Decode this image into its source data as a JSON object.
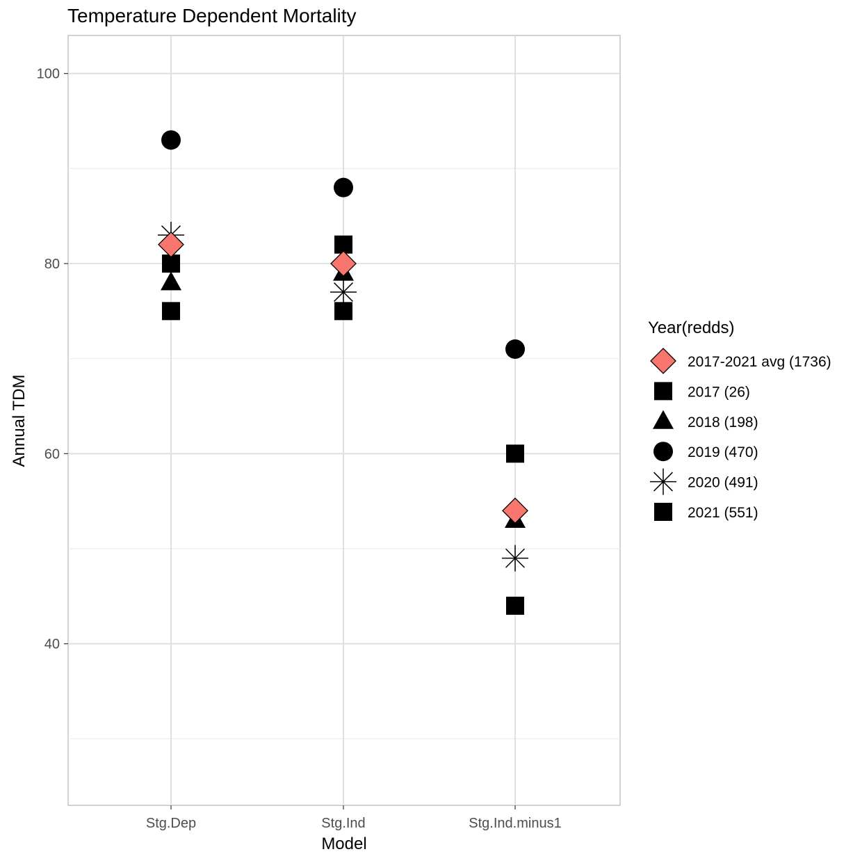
{
  "chart_data": {
    "type": "scatter",
    "title": "Temperature Dependent Mortality",
    "xlabel": "Model",
    "ylabel": "Annual TDM",
    "categories": [
      "Stg.Dep",
      "Stg.Ind",
      "Stg.Ind.minus1"
    ],
    "ylim": [
      23,
      104
    ],
    "yticks": [
      40,
      60,
      80,
      100
    ],
    "ytick_labels": [
      "40",
      "60",
      "80",
      "100"
    ],
    "grid": true,
    "legend": {
      "title": "Year(redds)",
      "position": "right"
    },
    "series": [
      {
        "name": "2017-2021 avg (1736)",
        "shape": "diamond",
        "color": "#F8766D",
        "values": [
          82,
          80,
          54
        ]
      },
      {
        "name": "2017 (26)",
        "shape": "square",
        "color": "#000000",
        "values": [
          80,
          82,
          60
        ]
      },
      {
        "name": "2018 (198)",
        "shape": "triangle",
        "color": "#000000",
        "values": [
          78,
          79,
          53
        ]
      },
      {
        "name": "2019 (470)",
        "shape": "circle",
        "color": "#000000",
        "values": [
          93,
          88,
          71
        ]
      },
      {
        "name": "2020 (491)",
        "shape": "asterisk",
        "color": "#000000",
        "values": [
          83,
          77,
          49
        ]
      },
      {
        "name": "2021 (551)",
        "shape": "square",
        "color": "#000000",
        "values": [
          75,
          75,
          44
        ]
      }
    ]
  }
}
